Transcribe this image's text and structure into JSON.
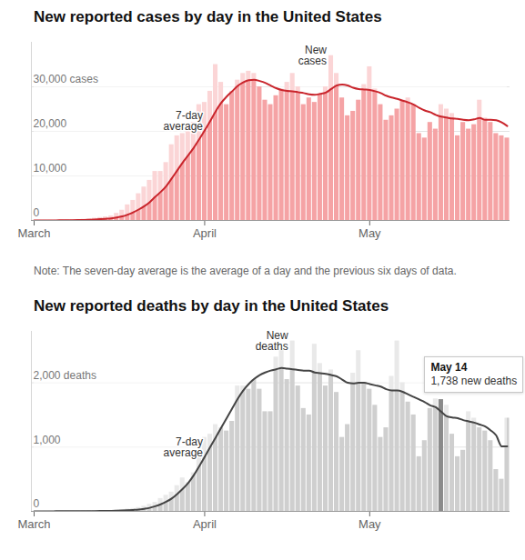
{
  "chart_data": [
    {
      "type": "bar",
      "title": "New reported cases by day in the United States",
      "note": "Note: The seven-day average is the average of a day and the previous six days of data.",
      "categories": [
        "March",
        null,
        null,
        null,
        null,
        null,
        null,
        null,
        null,
        null,
        null,
        null,
        null,
        null,
        null,
        null,
        null,
        null,
        null,
        null,
        null,
        null,
        null,
        null,
        null,
        null,
        null,
        null,
        null,
        null,
        null,
        "April",
        null,
        null,
        null,
        null,
        null,
        null,
        null,
        null,
        null,
        null,
        null,
        null,
        null,
        null,
        null,
        null,
        null,
        null,
        null,
        null,
        null,
        null,
        null,
        null,
        null,
        null,
        null,
        null,
        null,
        "May",
        null,
        null,
        null,
        null,
        null,
        null,
        null,
        null,
        null,
        null,
        null,
        null,
        null,
        null,
        null,
        null,
        null,
        null,
        null,
        null,
        null,
        null,
        null,
        null,
        null
      ],
      "series": [
        {
          "name": "New cases",
          "type": "bar",
          "color": "#f5a3a5",
          "values": [
            10,
            20,
            25,
            30,
            50,
            80,
            100,
            120,
            180,
            250,
            350,
            500,
            650,
            800,
            1000,
            1600,
            2300,
            3500,
            4500,
            6000,
            7500,
            9000,
            11000,
            11000,
            13000,
            17000,
            19000,
            19500,
            20000,
            22000,
            26000,
            26500,
            29000,
            35000,
            31000,
            26000,
            29000,
            31500,
            33000,
            33500,
            33000,
            30000,
            27000,
            26000,
            28000,
            29500,
            31000,
            33000,
            30000,
            26000,
            27500,
            26500,
            28500,
            30000,
            37000,
            33000,
            27500,
            23500,
            24500,
            27000,
            30500,
            34500,
            29500,
            26000,
            22500,
            23500,
            25000,
            27000,
            27500,
            26000,
            19500,
            18500,
            22000,
            20500,
            26000,
            25000,
            24000,
            19000,
            22000,
            20500,
            21500,
            27000,
            23000,
            22000,
            19500,
            19000,
            18500
          ]
        },
        {
          "name": "7-day average",
          "type": "line",
          "color": "#c9252c",
          "values": [
            5,
            10,
            15,
            20,
            25,
            35,
            50,
            65,
            85,
            110,
            150,
            210,
            290,
            380,
            480,
            650,
            900,
            1300,
            1800,
            2450,
            3200,
            4100,
            5300,
            6400,
            7700,
            9400,
            11200,
            13000,
            14600,
            16300,
            18200,
            20200,
            22300,
            24500,
            26400,
            27800,
            29000,
            30200,
            31000,
            31500,
            31600,
            31300,
            30900,
            30300,
            29700,
            29300,
            29100,
            29000,
            28800,
            28600,
            28300,
            28200,
            28400,
            28700,
            29500,
            30300,
            30500,
            30300,
            29800,
            29500,
            29400,
            29300,
            29000,
            28600,
            28000,
            27600,
            27300,
            26900,
            26500,
            26000,
            25300,
            24700,
            24300,
            23700,
            23300,
            23100,
            22900,
            22800,
            22600,
            22500,
            22700,
            23000,
            22600,
            22600,
            22500,
            22000,
            21200
          ]
        }
      ],
      "ylim": [
        0,
        40000
      ],
      "yticks": [
        0,
        {
          "value": 10000,
          "label": "10,000"
        },
        {
          "value": 20000,
          "label": "20,000"
        },
        {
          "value": 30000,
          "label": "30,000 cases"
        }
      ],
      "grid": true
    },
    {
      "type": "bar",
      "title": "New reported deaths by day in the United States",
      "categories": [
        "March",
        null,
        null,
        null,
        null,
        null,
        null,
        null,
        null,
        null,
        null,
        null,
        null,
        null,
        null,
        null,
        null,
        null,
        null,
        null,
        null,
        null,
        null,
        null,
        null,
        null,
        null,
        null,
        null,
        null,
        null,
        "April",
        null,
        null,
        null,
        null,
        null,
        null,
        null,
        null,
        null,
        null,
        null,
        null,
        null,
        null,
        null,
        null,
        null,
        null,
        null,
        null,
        null,
        null,
        null,
        null,
        null,
        null,
        null,
        null,
        null,
        "May",
        null,
        null,
        null,
        null,
        null,
        null,
        null,
        null,
        null,
        null,
        null,
        null,
        null,
        null,
        null,
        null,
        null,
        null,
        null,
        null,
        null,
        null,
        null,
        null,
        null
      ],
      "series": [
        {
          "name": "New deaths",
          "type": "bar",
          "color": "#cfcfcf",
          "values": [
            0,
            1,
            2,
            3,
            2,
            2,
            3,
            4,
            4,
            5,
            8,
            10,
            10,
            10,
            10,
            20,
            25,
            35,
            45,
            60,
            80,
            110,
            140,
            200,
            250,
            300,
            400,
            520,
            450,
            600,
            950,
            1150,
            1200,
            1350,
            1300,
            1250,
            1400,
            1950,
            1950,
            1900,
            2050,
            1900,
            1550,
            1550,
            2400,
            2500,
            2050,
            2650,
            1950,
            1600,
            1500,
            2600,
            2300,
            1950,
            2200,
            1850,
            1150,
            1350,
            2150,
            2500,
            2000,
            1900,
            1650,
            1150,
            1300,
            2100,
            2650,
            2000,
            1700,
            1500,
            850,
            1100,
            1600,
            1750,
            1738,
            1650,
            1200,
            850,
            950,
            1550,
            1450,
            1300,
            1250,
            1100,
            650,
            500,
            1450
          ]
        },
        {
          "name": "7-day average",
          "type": "line",
          "color": "#444444",
          "values": [
            0,
            0,
            1,
            1,
            2,
            2,
            2,
            3,
            3,
            3,
            4,
            5,
            6,
            7,
            8,
            10,
            13,
            17,
            22,
            28,
            40,
            55,
            80,
            110,
            150,
            200,
            270,
            350,
            440,
            560,
            700,
            850,
            1000,
            1150,
            1300,
            1450,
            1600,
            1750,
            1880,
            1980,
            2060,
            2120,
            2160,
            2190,
            2210,
            2230,
            2220,
            2210,
            2200,
            2190,
            2190,
            2160,
            2150,
            2140,
            2120,
            2100,
            2050,
            2000,
            1990,
            2000,
            2000,
            1980,
            1960,
            1940,
            1900,
            1880,
            1880,
            1860,
            1820,
            1780,
            1740,
            1700,
            1650,
            1620,
            1550,
            1480,
            1460,
            1450,
            1420,
            1400,
            1380,
            1350,
            1320,
            1260,
            1180,
            1010,
            1010
          ]
        }
      ],
      "ylim": [
        0,
        2800
      ],
      "yticks": [
        0,
        {
          "value": 1000,
          "label": "1,000"
        },
        {
          "value": 2000,
          "label": "2,000 deaths"
        }
      ],
      "grid": true,
      "highlight": {
        "label": "May 14",
        "value": 1738,
        "value_label": "1,738 new deaths"
      }
    }
  ]
}
